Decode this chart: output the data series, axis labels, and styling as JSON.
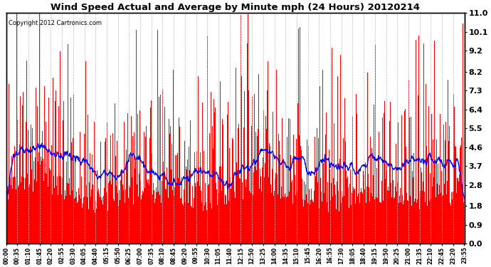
{
  "title": "Wind Speed Actual and Average by Minute mph (24 Hours) 20120214",
  "copyright": "Copyright 2012 Cartronics.com",
  "ylim": [
    0.0,
    11.0
  ],
  "yticks": [
    0.0,
    0.9,
    1.8,
    2.8,
    3.7,
    4.6,
    5.5,
    6.4,
    7.3,
    8.2,
    9.2,
    10.1,
    11.0
  ],
  "bar_color": "#FF0000",
  "line_color": "#0000FF",
  "background_color": "#FFFFFF",
  "grid_color": "#BBBBBB",
  "x_tick_labels": [
    "00:00",
    "00:35",
    "01:10",
    "01:45",
    "02:20",
    "02:55",
    "03:30",
    "04:05",
    "04:40",
    "05:15",
    "05:50",
    "06:25",
    "07:00",
    "07:35",
    "08:10",
    "08:45",
    "09:20",
    "09:55",
    "10:30",
    "11:05",
    "11:40",
    "12:15",
    "12:50",
    "13:25",
    "14:00",
    "14:35",
    "15:10",
    "15:45",
    "16:20",
    "16:55",
    "17:30",
    "18:05",
    "18:40",
    "19:15",
    "19:50",
    "20:25",
    "21:00",
    "21:35",
    "22:10",
    "22:45",
    "23:20",
    "23:55"
  ],
  "n_minutes": 1440,
  "seed": 7
}
